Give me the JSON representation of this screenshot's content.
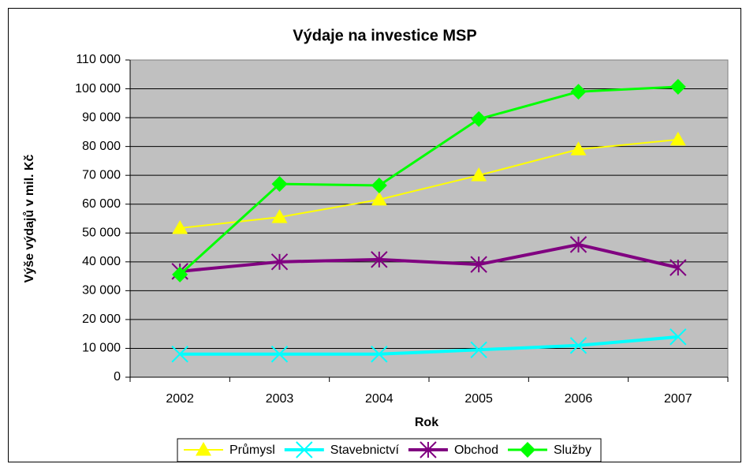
{
  "chart_data": {
    "type": "line",
    "title": "Výdaje na investice MSP",
    "x_label": "Rok",
    "y_label": "Výše výdajů v mil. Kč",
    "categories": [
      "2002",
      "2003",
      "2004",
      "2005",
      "2006",
      "2007"
    ],
    "series": [
      {
        "name": "Průmysl",
        "color": "#ffff00",
        "marker": "triangle",
        "values": [
          51700,
          55500,
          61600,
          70000,
          79000,
          82400
        ]
      },
      {
        "name": "Stavebnictví",
        "color": "#00ffff",
        "marker": "x",
        "values": [
          8000,
          8000,
          8000,
          9500,
          11000,
          14000
        ]
      },
      {
        "name": "Obchod",
        "color": "#800080",
        "marker": "asterisk",
        "values": [
          36700,
          40000,
          40800,
          39100,
          46000,
          38000
        ]
      },
      {
        "name": "Služby",
        "color": "#00ff00",
        "marker": "diamond",
        "values": [
          35600,
          67000,
          66500,
          89500,
          99000,
          100700
        ]
      }
    ],
    "ylim": [
      0,
      110000
    ],
    "yticks": [
      0,
      {
        "value": 10000,
        "label": "10 000"
      },
      {
        "value": 20000,
        "label": "20 000"
      },
      {
        "value": 30000,
        "label": "30 000"
      },
      {
        "value": 40000,
        "label": "40 000"
      },
      {
        "value": 50000,
        "label": "50 000"
      },
      {
        "value": 60000,
        "label": "60 000"
      },
      {
        "value": 70000,
        "label": "70 000"
      },
      {
        "value": 80000,
        "label": "80 000"
      },
      {
        "value": 90000,
        "label": "90 000"
      },
      {
        "value": 100000,
        "label": "100 000"
      },
      {
        "value": 110000,
        "label": "110 000"
      }
    ],
    "grid": true,
    "legend": "bottom",
    "plot_background": "#c0c0c0"
  }
}
